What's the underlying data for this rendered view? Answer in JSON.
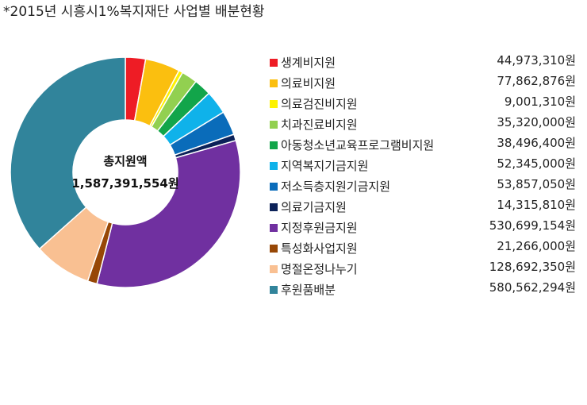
{
  "chart_data": {
    "type": "pie",
    "title": "*2015년 시흥시1%복지재단 사업별 배분현황",
    "center_label": "총지원액",
    "center_value": "1,587,391,554원",
    "legend_position": "right",
    "categories": [
      "생계비지원",
      "의료비지원",
      "의료검진비지원",
      "치과진료비지원",
      "아동청소년교육프로그램비지원",
      "지역복지기금지원",
      "저소득층지원기금지원",
      "의료기금지원",
      "지정후원금지원",
      "특성화사업지원",
      "명절온정나누기",
      "후원품배분"
    ],
    "values": [
      44973310,
      77862876,
      9001310,
      35320000,
      38496400,
      52345000,
      53857050,
      14315810,
      530699154,
      21266000,
      128692350,
      580562294
    ],
    "value_labels": [
      "44,973,310원",
      "77,862,876원",
      "9,001,310원",
      "35,320,000원",
      "38,496,400원",
      "52,345,000원",
      "53,857,050원",
      "14,315,810원",
      "530,699,154원",
      "21,266,000원",
      "128,692,350원",
      "580,562,294원"
    ],
    "colors": [
      "#ee1c25",
      "#fbbf0f",
      "#fdf200",
      "#92d050",
      "#12a54a",
      "#0fb2ea",
      "#0a6cba",
      "#0c2259",
      "#7030a0",
      "#974706",
      "#f9c092",
      "#31849b"
    ]
  }
}
